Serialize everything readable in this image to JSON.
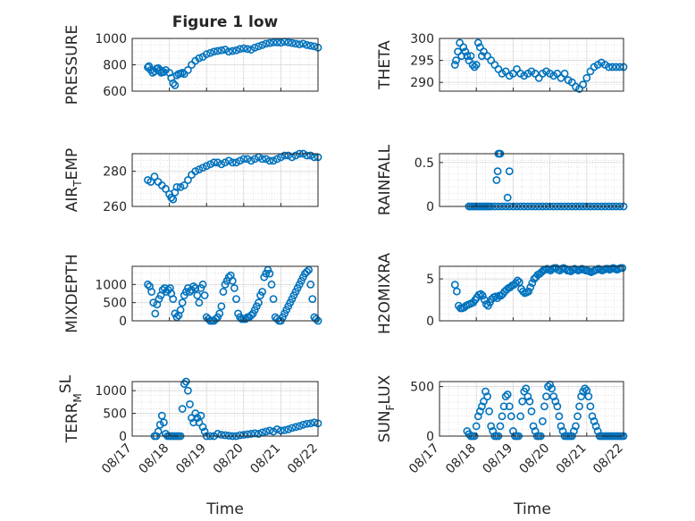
{
  "figure": {
    "title": "Figure 1 low",
    "xlabel": "Time"
  },
  "style": {
    "marker_color": "#0072BD",
    "grid_color": "#d9d9d9",
    "axis_color": "#262626"
  },
  "chart_data": [
    {
      "type": "scatter",
      "id": "pressure",
      "title": "Figure 1 low",
      "ylabel": "PRESSURE",
      "ylim": [
        600,
        1000
      ],
      "yticks": [
        600,
        800,
        1000
      ],
      "xlim": [
        0,
        5
      ],
      "grid": true,
      "show_xticks": false,
      "x": [
        0.42,
        0.45,
        0.5,
        0.55,
        0.6,
        0.65,
        0.7,
        0.75,
        0.78,
        0.8,
        0.85,
        0.9,
        1,
        1.05,
        1.1,
        1.15,
        1.2,
        1.25,
        1.3,
        1.35,
        1.4,
        1.5,
        1.6,
        1.7,
        1.8,
        1.9,
        2,
        2.1,
        2.2,
        2.3,
        2.4,
        2.5,
        2.6,
        2.7,
        2.8,
        2.9,
        3,
        3.1,
        3.2,
        3.3,
        3.4,
        3.5,
        3.6,
        3.7,
        3.8,
        3.9,
        4,
        4.1,
        4.2,
        4.3,
        4.4,
        4.5,
        4.6,
        4.7,
        4.8,
        4.9,
        5
      ],
      "y": [
        780,
        790,
        760,
        740,
        750,
        770,
        775,
        760,
        740,
        750,
        745,
        760,
        740,
        700,
        660,
        645,
        720,
        730,
        735,
        740,
        730,
        760,
        800,
        830,
        850,
        860,
        880,
        890,
        900,
        905,
        910,
        915,
        900,
        905,
        910,
        920,
        925,
        920,
        915,
        930,
        940,
        950,
        960,
        965,
        970,
        970,
        968,
        975,
        970,
        965,
        960,
        955,
        960,
        950,
        945,
        940,
        930
      ]
    },
    {
      "type": "scatter",
      "id": "theta",
      "title": "",
      "ylabel": "THETA",
      "ylim": [
        288,
        300
      ],
      "yticks": [
        290,
        295,
        300
      ],
      "xlim": [
        0,
        5
      ],
      "grid": true,
      "show_xticks": false,
      "x": [
        0.42,
        0.45,
        0.5,
        0.55,
        0.6,
        0.65,
        0.7,
        0.75,
        0.8,
        0.85,
        0.9,
        0.95,
        1,
        1.05,
        1.1,
        1.15,
        1.2,
        1.3,
        1.4,
        1.5,
        1.6,
        1.7,
        1.8,
        1.9,
        2,
        2.1,
        2.2,
        2.3,
        2.4,
        2.5,
        2.6,
        2.7,
        2.8,
        2.9,
        3,
        3.1,
        3.2,
        3.3,
        3.4,
        3.5,
        3.6,
        3.7,
        3.8,
        3.9,
        4,
        4.1,
        4.2,
        4.3,
        4.4,
        4.5,
        4.6,
        4.7,
        4.8,
        4.9,
        5
      ],
      "x_note": "",
      "y": [
        294,
        295,
        297,
        299,
        296,
        298,
        297,
        296,
        295,
        296,
        294,
        293.5,
        294,
        299,
        298,
        296,
        297,
        296,
        295,
        294,
        293,
        292,
        292.5,
        291.5,
        292,
        293,
        292,
        291.5,
        292,
        292.5,
        292,
        291,
        292,
        292.5,
        292,
        291.5,
        292,
        291,
        292,
        290.5,
        290,
        289,
        288.5,
        289.5,
        291,
        292.5,
        293.5,
        294,
        294.5,
        294,
        293.5,
        293.5,
        293.5,
        293.5,
        293.5
      ]
    },
    {
      "type": "scatter",
      "id": "airtemp",
      "title": "",
      "ylabel": "AIR",
      "ylabel_sub": "T",
      "ylabel_rest": "EMP",
      "ylim": [
        260,
        290
      ],
      "yticks": [
        260,
        280
      ],
      "xlim": [
        0,
        5
      ],
      "grid": true,
      "show_xticks": false,
      "x": [
        0.42,
        0.5,
        0.6,
        0.7,
        0.8,
        0.9,
        1,
        1.05,
        1.1,
        1.15,
        1.2,
        1.3,
        1.4,
        1.5,
        1.6,
        1.7,
        1.8,
        1.9,
        2,
        2.1,
        2.2,
        2.3,
        2.4,
        2.5,
        2.6,
        2.7,
        2.8,
        2.9,
        3,
        3.1,
        3.2,
        3.3,
        3.4,
        3.5,
        3.6,
        3.7,
        3.8,
        3.9,
        4,
        4.1,
        4.2,
        4.3,
        4.4,
        4.5,
        4.6,
        4.7,
        4.8,
        4.9,
        5
      ],
      "y": [
        275,
        274,
        277,
        274,
        272,
        270,
        267,
        265,
        264,
        268,
        271,
        271,
        272,
        275,
        278,
        280,
        281,
        282,
        283,
        284,
        285,
        285,
        284,
        285,
        286,
        285,
        285,
        286,
        287,
        287,
        286,
        287,
        288,
        287,
        287,
        286,
        286,
        287,
        288,
        289,
        289,
        288,
        289,
        290,
        290,
        289,
        289,
        288,
        288
      ]
    },
    {
      "type": "scatter",
      "id": "rainfall",
      "title": "",
      "ylabel": "RAINFALL",
      "ylim": [
        0,
        0.6
      ],
      "yticks": [
        0,
        0.5
      ],
      "xlim": [
        0,
        5
      ],
      "grid": true,
      "show_xticks": false,
      "x": [
        0.8,
        0.85,
        0.9,
        0.95,
        1,
        1.05,
        1.1,
        1.15,
        1.2,
        1.25,
        1.3,
        1.35,
        1.4,
        1.5,
        1.6,
        1.7,
        1.8,
        1.9,
        2,
        2.1,
        2.2,
        2.3,
        2.4,
        2.5,
        2.6,
        2.7,
        2.8,
        2.9,
        3,
        3.1,
        3.2,
        3.3,
        3.4,
        3.5,
        3.6,
        3.7,
        3.8,
        3.9,
        4,
        4.1,
        4.2,
        4.3,
        4.4,
        4.5,
        4.6,
        4.7,
        4.8,
        4.9,
        5,
        1.55,
        1.58,
        1.6,
        1.62,
        1.65,
        1.85,
        1.9
      ],
      "y": [
        0,
        0,
        0,
        0,
        0,
        0,
        0,
        0,
        0,
        0,
        0,
        0,
        0,
        0,
        0,
        0,
        0,
        0,
        0,
        0,
        0,
        0,
        0,
        0,
        0,
        0,
        0,
        0,
        0,
        0,
        0,
        0,
        0,
        0,
        0,
        0,
        0,
        0,
        0,
        0,
        0,
        0,
        0,
        0,
        0,
        0,
        0,
        0,
        0,
        0.3,
        0.4,
        0.6,
        0.6,
        0.6,
        0.1,
        0.4
      ]
    },
    {
      "type": "scatter",
      "id": "mixdepth",
      "title": "",
      "ylabel": "MIXDEPTH",
      "ylim": [
        0,
        1500
      ],
      "yticks": [
        0,
        500,
        1000
      ],
      "xlim": [
        0,
        5
      ],
      "grid": true,
      "show_xticks": false,
      "x": [
        0.42,
        0.47,
        0.52,
        0.57,
        0.62,
        0.67,
        0.72,
        0.77,
        0.82,
        0.87,
        0.92,
        0.97,
        1.02,
        1.05,
        1.1,
        1.15,
        1.2,
        1.25,
        1.3,
        1.35,
        1.4,
        1.45,
        1.5,
        1.55,
        1.6,
        1.65,
        1.7,
        1.75,
        1.8,
        1.85,
        1.9,
        1.95,
        2,
        2.05,
        2.1,
        2.15,
        2.2,
        2.25,
        2.3,
        2.35,
        2.4,
        2.45,
        2.5,
        2.55,
        2.6,
        2.65,
        2.7,
        2.75,
        2.8,
        2.85,
        2.9,
        2.95,
        3,
        3.05,
        3.1,
        3.15,
        3.2,
        3.25,
        3.3,
        3.35,
        3.4,
        3.45,
        3.5,
        3.55,
        3.6,
        3.65,
        3.7,
        3.75,
        3.8,
        3.85,
        3.9,
        3.95,
        4,
        4.05,
        4.1,
        4.15,
        4.2,
        4.25,
        4.3,
        4.35,
        4.4,
        4.45,
        4.5,
        4.55,
        4.6,
        4.65,
        4.7,
        4.75,
        4.8,
        4.85,
        4.9,
        4.95,
        5
      ],
      "y": [
        1000,
        950,
        800,
        500,
        200,
        450,
        600,
        700,
        850,
        900,
        800,
        850,
        900,
        750,
        600,
        200,
        100,
        150,
        300,
        500,
        700,
        800,
        900,
        800,
        850,
        950,
        900,
        700,
        500,
        900,
        1000,
        700,
        100,
        50,
        0,
        0,
        0,
        50,
        100,
        200,
        400,
        800,
        1000,
        1100,
        1200,
        1250,
        1100,
        900,
        600,
        200,
        100,
        50,
        50,
        50,
        100,
        100,
        150,
        200,
        300,
        400,
        500,
        700,
        800,
        1200,
        1300,
        1400,
        1300,
        1000,
        600,
        100,
        50,
        0,
        0,
        100,
        200,
        300,
        400,
        500,
        600,
        700,
        800,
        900,
        1000,
        1100,
        1200,
        1300,
        1350,
        1400,
        1000,
        600,
        100,
        50,
        0
      ]
    },
    {
      "type": "scatter",
      "id": "h2omixra",
      "title": "",
      "ylabel": "H2OMIXRA",
      "ylim": [
        0,
        6.5
      ],
      "yticks": [
        0,
        5
      ],
      "xlim": [
        0,
        5
      ],
      "grid": true,
      "show_xticks": false,
      "x": [
        0.42,
        0.47,
        0.52,
        0.57,
        0.62,
        0.67,
        0.72,
        0.77,
        0.82,
        0.87,
        0.92,
        0.97,
        1.02,
        1.07,
        1.12,
        1.17,
        1.22,
        1.27,
        1.32,
        1.37,
        1.42,
        1.47,
        1.52,
        1.57,
        1.62,
        1.67,
        1.72,
        1.77,
        1.82,
        1.87,
        1.92,
        1.97,
        2.02,
        2.07,
        2.12,
        2.17,
        2.22,
        2.27,
        2.32,
        2.37,
        2.42,
        2.47,
        2.52,
        2.57,
        2.62,
        2.67,
        2.72,
        2.77,
        2.82,
        2.87,
        2.92,
        2.97,
        3.02,
        3.07,
        3.12,
        3.17,
        3.22,
        3.27,
        3.32,
        3.37,
        3.42,
        3.47,
        3.52,
        3.57,
        3.62,
        3.67,
        3.72,
        3.77,
        3.82,
        3.87,
        3.92,
        3.97,
        4.02,
        4.07,
        4.12,
        4.17,
        4.22,
        4.27,
        4.32,
        4.37,
        4.42,
        4.47,
        4.52,
        4.57,
        4.62,
        4.67,
        4.72,
        4.77,
        4.82,
        4.87,
        4.92,
        4.97
      ],
      "y": [
        4.3,
        3.5,
        1.8,
        1.5,
        1.5,
        1.6,
        1.8,
        1.9,
        2,
        2.1,
        2.2,
        2.5,
        2.8,
        3.1,
        3.2,
        3,
        2.5,
        2,
        1.8,
        2.2,
        2.6,
        2.8,
        2.9,
        2.7,
        3,
        3,
        3.2,
        3.5,
        3.7,
        3.9,
        4,
        4.2,
        4.3,
        4.5,
        4.8,
        4.6,
        3.8,
        3.5,
        3.3,
        3.4,
        3.5,
        4,
        4.5,
        5,
        5.2,
        5.5,
        5.6,
        5.8,
        6,
        6.1,
        6.2,
        6.1,
        6,
        6.2,
        6.3,
        6.3,
        6.1,
        6,
        6.2,
        6.3,
        6.2,
        6,
        6,
        5.9,
        6.1,
        6.2,
        6.1,
        6,
        6.1,
        6.2,
        6.1,
        6,
        6,
        5.9,
        5.8,
        5.9,
        6,
        6.1,
        6.2,
        6.1,
        6,
        6.1,
        6.2,
        6.2,
        6.1,
        6.2,
        6.3,
        6.2,
        6.1,
        6.2,
        6.3,
        6.3
      ]
    },
    {
      "type": "scatter",
      "id": "terrmsl",
      "title": "",
      "ylabel": "TERR",
      "ylabel_sub": "M",
      "ylabel_sup": "SL",
      "ylim": [
        0,
        1200
      ],
      "yticks": [
        0,
        500,
        1000
      ],
      "xlim": [
        0,
        5
      ],
      "grid": true,
      "show_xticks": true,
      "x": [
        0.6,
        0.65,
        0.7,
        0.75,
        0.8,
        0.85,
        0.9,
        0.95,
        1,
        1.05,
        1.1,
        1.15,
        1.2,
        1.25,
        1.3,
        1.35,
        1.4,
        1.45,
        1.5,
        1.55,
        1.6,
        1.65,
        1.7,
        1.75,
        1.8,
        1.85,
        1.9,
        1.95,
        2,
        2.1,
        2.2,
        2.3,
        2.4,
        2.5,
        2.6,
        2.7,
        2.8,
        2.9,
        3,
        3.1,
        3.2,
        3.3,
        3.4,
        3.5,
        3.6,
        3.7,
        3.8,
        3.9,
        4,
        4.1,
        4.2,
        4.3,
        4.4,
        4.5,
        4.6,
        4.7,
        4.8,
        4.9,
        5
      ],
      "y": [
        0,
        0,
        100,
        250,
        450,
        300,
        50,
        0,
        0,
        0,
        0,
        0,
        0,
        0,
        0,
        600,
        1150,
        1200,
        1000,
        700,
        400,
        300,
        500,
        400,
        300,
        450,
        200,
        100,
        0,
        0,
        0,
        50,
        30,
        20,
        10,
        0,
        0,
        20,
        30,
        40,
        50,
        60,
        50,
        80,
        100,
        120,
        100,
        150,
        120,
        130,
        150,
        180,
        200,
        220,
        250,
        270,
        280,
        300,
        280
      ]
    },
    {
      "type": "scatter",
      "id": "sunflux",
      "title": "",
      "ylabel": "SUN",
      "ylabel_sub": "F",
      "ylabel_rest": "LUX",
      "ylim": [
        0,
        550
      ],
      "yticks": [
        0,
        500
      ],
      "xlim": [
        0,
        5
      ],
      "grid": true,
      "show_xticks": true,
      "x": [
        0.75,
        0.8,
        0.85,
        0.9,
        0.95,
        1,
        1.05,
        1.1,
        1.15,
        1.2,
        1.25,
        1.3,
        1.35,
        1.4,
        1.45,
        1.5,
        1.55,
        1.6,
        1.65,
        1.7,
        1.75,
        1.8,
        1.85,
        1.9,
        1.95,
        2,
        2.05,
        2.1,
        2.15,
        2.2,
        2.25,
        2.3,
        2.35,
        2.4,
        2.45,
        2.5,
        2.55,
        2.6,
        2.65,
        2.7,
        2.75,
        2.8,
        2.85,
        2.9,
        2.95,
        3,
        3.05,
        3.1,
        3.15,
        3.2,
        3.25,
        3.3,
        3.35,
        3.4,
        3.45,
        3.5,
        3.55,
        3.6,
        3.65,
        3.7,
        3.75,
        3.8,
        3.85,
        3.9,
        3.95,
        4,
        4.05,
        4.1,
        4.15,
        4.2,
        4.25,
        4.3,
        4.35,
        4.4,
        4.45,
        4.5,
        4.55,
        4.6,
        4.65,
        4.7,
        4.75,
        4.8,
        4.85,
        4.9,
        4.95,
        5
      ],
      "y": [
        50,
        20,
        0,
        0,
        0,
        100,
        200,
        250,
        300,
        350,
        450,
        400,
        250,
        100,
        50,
        0,
        0,
        0,
        100,
        200,
        300,
        400,
        420,
        300,
        200,
        50,
        0,
        0,
        0,
        200,
        350,
        450,
        480,
        400,
        350,
        250,
        100,
        50,
        0,
        0,
        0,
        150,
        300,
        400,
        500,
        520,
        480,
        400,
        350,
        300,
        200,
        100,
        50,
        0,
        0,
        0,
        0,
        0,
        50,
        100,
        200,
        300,
        400,
        450,
        480,
        460,
        400,
        300,
        200,
        150,
        100,
        50,
        0,
        0,
        0,
        0,
        0,
        0,
        0,
        0,
        0,
        0,
        0,
        0,
        0,
        0
      ],
      "x_note": ""
    }
  ],
  "xaxis": {
    "tick_labels": [
      "08/17",
      "08/18",
      "08/19",
      "08/20",
      "08/21",
      "08/22"
    ],
    "label": "Time"
  }
}
